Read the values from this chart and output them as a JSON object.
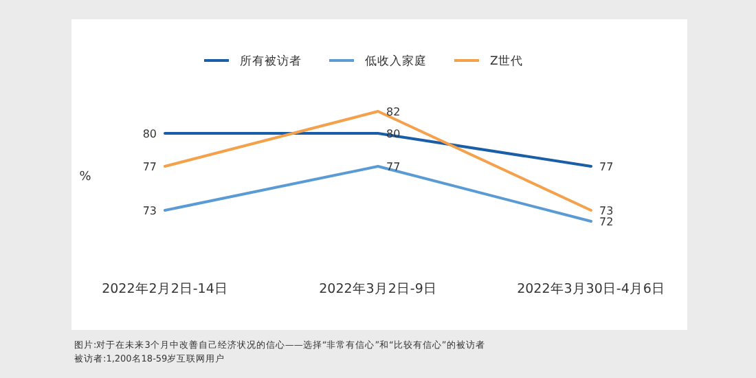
{
  "chart_data": {
    "type": "line",
    "ylabel": "%",
    "categories": [
      "2022年2月2日-14日",
      "2022年3月2日-9日",
      "2022年3月30日-4月6日"
    ],
    "series": [
      {
        "name": "所有被访者",
        "color": "#1a5ea8",
        "values": [
          80,
          80,
          77
        ]
      },
      {
        "name": "低收入家庭",
        "color": "#5b9bd5",
        "values": [
          73,
          77,
          72
        ]
      },
      {
        "name": "Z世代",
        "color": "#f5a04a",
        "values": [
          77,
          82,
          73
        ]
      }
    ],
    "data_labels": true,
    "legend": "top",
    "grid": false,
    "marker": "none",
    "line_style": "solid",
    "annotations": [
      "图片:对于在未来3个月中改善自己经济状况的信心——选择“非常有信心”和“比较有信心”的被访者",
      "被访者:1,200名18-59岁互联网用户"
    ]
  }
}
